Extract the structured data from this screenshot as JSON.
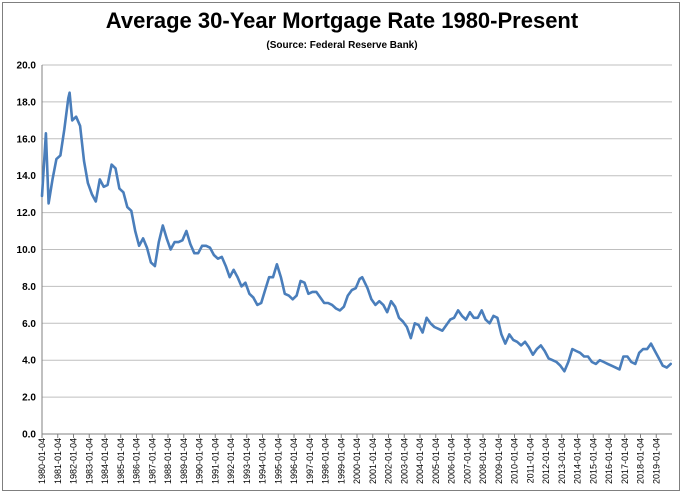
{
  "chart_data": {
    "type": "line",
    "title": "Average 30-Year Mortgage Rate 1980-Present",
    "subtitle": "(Source: Federal Reserve Bank)",
    "xlabel": "",
    "ylabel": "",
    "ylim": [
      0,
      20
    ],
    "yticks": [
      "0.0",
      "2.0",
      "4.0",
      "6.0",
      "8.0",
      "10.0",
      "12.0",
      "14.0",
      "16.0",
      "18.0",
      "20.0"
    ],
    "xticks": [
      "1980-01-04",
      "1981-01-04",
      "1982-01-04",
      "1983-01-04",
      "1984-01-04",
      "1985-01-04",
      "1986-01-04",
      "1987-01-04",
      "1988-01-04",
      "1989-01-04",
      "1990-01-04",
      "1991-01-04",
      "1992-01-04",
      "1993-01-04",
      "1994-01-04",
      "1995-01-04",
      "1996-01-04",
      "1997-01-04",
      "1998-01-04",
      "1999-01-04",
      "2000-01-04",
      "2001-01-04",
      "2002-01-04",
      "2003-01-04",
      "2004-01-04",
      "2005-01-04",
      "2006-01-04",
      "2007-01-04",
      "2008-01-04",
      "2009-01-04",
      "2010-01-04",
      "2011-01-04",
      "2012-01-04",
      "2013-01-04",
      "2014-01-04",
      "2015-01-04",
      "2016-01-04",
      "2017-01-04",
      "2018-01-04",
      "2019-01-04"
    ],
    "grid": true,
    "legend": "none",
    "line_color": "#4a7ebb",
    "series": [
      {
        "x": [
          "1980-01",
          "1980-04",
          "1980-06",
          "1980-09",
          "1980-12",
          "1981-03",
          "1981-06",
          "1981-09",
          "1981-10",
          "1981-12",
          "1982-03",
          "1982-06",
          "1982-09",
          "1982-12",
          "1983-03",
          "1983-06",
          "1983-09",
          "1983-12",
          "1984-03",
          "1984-06",
          "1984-09",
          "1984-12",
          "1985-03",
          "1985-06",
          "1985-09",
          "1985-12",
          "1986-03",
          "1986-06",
          "1986-09",
          "1986-12",
          "1987-03",
          "1987-06",
          "1987-09",
          "1987-12",
          "1988-03",
          "1988-06",
          "1988-09",
          "1988-12",
          "1989-03",
          "1989-06",
          "1989-09",
          "1989-12",
          "1990-03",
          "1990-06",
          "1990-09",
          "1990-12",
          "1991-03",
          "1991-06",
          "1991-09",
          "1991-12",
          "1992-03",
          "1992-06",
          "1992-09",
          "1992-12",
          "1993-03",
          "1993-06",
          "1993-09",
          "1993-12",
          "1994-03",
          "1994-06",
          "1994-09",
          "1994-12",
          "1995-03",
          "1995-06",
          "1995-09",
          "1995-12",
          "1996-03",
          "1996-06",
          "1996-09",
          "1996-12",
          "1997-03",
          "1997-06",
          "1997-09",
          "1997-12",
          "1998-03",
          "1998-06",
          "1998-09",
          "1998-12",
          "1999-03",
          "1999-06",
          "1999-09",
          "1999-12",
          "2000-03",
          "2000-05",
          "2000-09",
          "2000-12",
          "2001-03",
          "2001-06",
          "2001-09",
          "2001-12",
          "2002-03",
          "2002-06",
          "2002-09",
          "2002-12",
          "2003-03",
          "2003-06",
          "2003-09",
          "2003-12",
          "2004-03",
          "2004-06",
          "2004-09",
          "2004-12",
          "2005-03",
          "2005-06",
          "2005-09",
          "2005-12",
          "2006-03",
          "2006-06",
          "2006-09",
          "2006-12",
          "2007-03",
          "2007-06",
          "2007-09",
          "2007-12",
          "2008-03",
          "2008-06",
          "2008-09",
          "2008-12",
          "2009-03",
          "2009-06",
          "2009-09",
          "2009-12",
          "2010-03",
          "2010-06",
          "2010-09",
          "2010-12",
          "2011-03",
          "2011-06",
          "2011-09",
          "2011-12",
          "2012-03",
          "2012-06",
          "2012-09",
          "2012-12",
          "2013-03",
          "2013-06",
          "2013-09",
          "2013-12",
          "2014-03",
          "2014-06",
          "2014-09",
          "2014-12",
          "2015-03",
          "2015-06",
          "2015-09",
          "2015-12",
          "2016-03",
          "2016-06",
          "2016-09",
          "2016-12",
          "2017-03",
          "2017-06",
          "2017-09",
          "2017-12",
          "2018-03",
          "2018-06",
          "2018-09",
          "2018-12",
          "2019-03",
          "2019-06",
          "2019-09",
          "2019-12"
        ],
        "values": [
          12.9,
          16.3,
          12.5,
          13.8,
          14.9,
          15.1,
          16.5,
          18.2,
          18.5,
          17.0,
          17.2,
          16.7,
          14.8,
          13.6,
          13.0,
          12.6,
          13.8,
          13.4,
          13.5,
          14.6,
          14.4,
          13.3,
          13.1,
          12.3,
          12.1,
          11.0,
          10.2,
          10.6,
          10.1,
          9.3,
          9.1,
          10.4,
          11.3,
          10.6,
          10.0,
          10.4,
          10.4,
          10.5,
          11.0,
          10.3,
          9.8,
          9.8,
          10.2,
          10.2,
          10.1,
          9.7,
          9.5,
          9.6,
          9.1,
          8.5,
          8.9,
          8.5,
          8.0,
          8.2,
          7.6,
          7.4,
          7.0,
          7.1,
          7.8,
          8.5,
          8.5,
          9.2,
          8.5,
          7.6,
          7.5,
          7.3,
          7.5,
          8.3,
          8.2,
          7.6,
          7.7,
          7.7,
          7.4,
          7.1,
          7.1,
          7.0,
          6.8,
          6.7,
          6.9,
          7.5,
          7.8,
          7.9,
          8.4,
          8.5,
          7.9,
          7.3,
          7.0,
          7.2,
          7.0,
          6.6,
          7.2,
          6.9,
          6.3,
          6.1,
          5.8,
          5.2,
          6.0,
          5.9,
          5.5,
          6.3,
          6.0,
          5.8,
          5.7,
          5.6,
          5.9,
          6.2,
          6.3,
          6.7,
          6.4,
          6.2,
          6.6,
          6.3,
          6.3,
          6.7,
          6.2,
          6.0,
          6.4,
          6.3,
          5.4,
          4.9,
          5.4,
          5.1,
          5.0,
          4.8,
          5.0,
          4.7,
          4.3,
          4.6,
          4.8,
          4.5,
          4.1,
          4.0,
          3.9,
          3.7,
          3.4,
          3.9,
          4.6,
          4.5,
          4.4,
          4.2,
          4.2,
          3.9,
          3.8,
          4.0,
          3.9,
          3.8,
          3.7,
          3.6,
          3.5,
          4.2,
          4.2,
          3.9,
          3.8,
          4.4,
          4.6,
          4.6,
          4.9,
          4.5,
          4.1,
          3.7,
          3.6,
          3.8
        ]
      }
    ]
  }
}
